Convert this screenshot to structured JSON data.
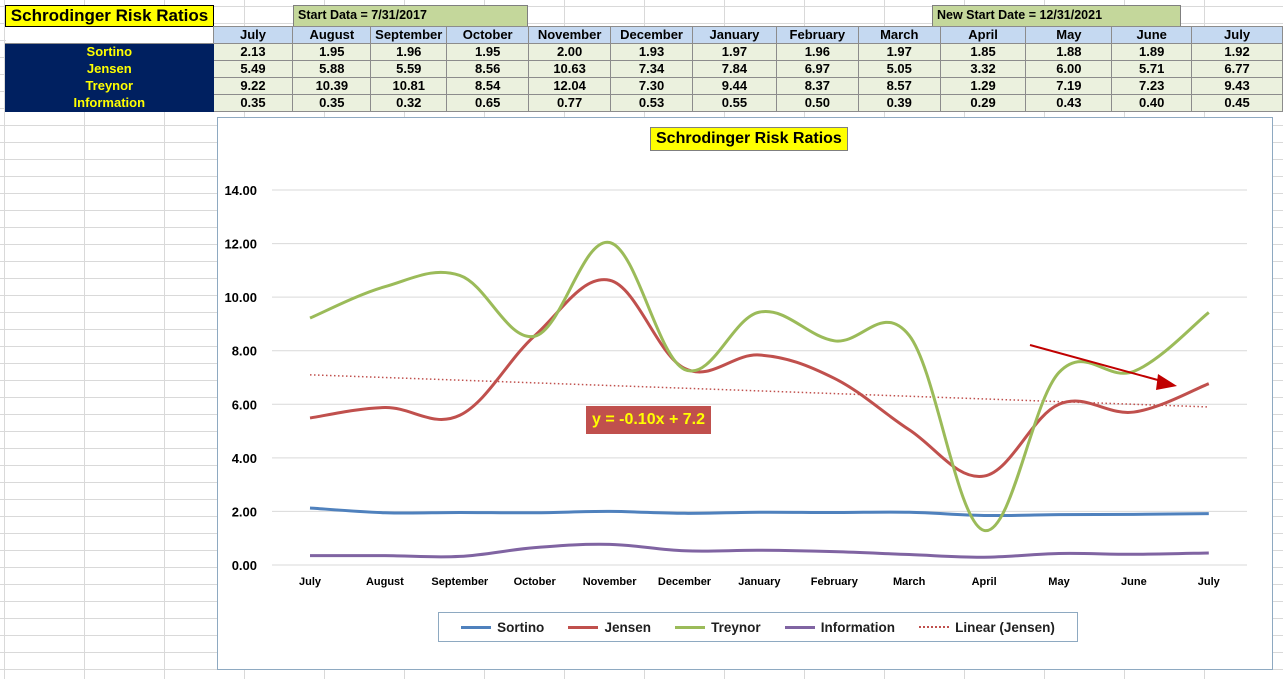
{
  "sheet": {
    "title": "Schrodinger Risk Ratios",
    "start_note": "Start Data = 7/31/2017",
    "new_start_note": "New Start Date = 12/31/2021",
    "columns": [
      "July",
      "August",
      "September",
      "October",
      "November",
      "December",
      "January",
      "February",
      "March",
      "April",
      "May",
      "June",
      "July"
    ],
    "rows": [
      {
        "label": "Sortino",
        "values": [
          "2.13",
          "1.95",
          "1.96",
          "1.95",
          "2.00",
          "1.93",
          "1.97",
          "1.96",
          "1.97",
          "1.85",
          "1.88",
          "1.89",
          "1.92"
        ]
      },
      {
        "label": "Jensen",
        "values": [
          "5.49",
          "5.88",
          "5.59",
          "8.56",
          "10.63",
          "7.34",
          "7.84",
          "6.97",
          "5.05",
          "3.32",
          "6.00",
          "5.71",
          "6.77"
        ]
      },
      {
        "label": "Treynor",
        "values": [
          "9.22",
          "10.39",
          "10.81",
          "8.54",
          "12.04",
          "7.30",
          "9.44",
          "8.37",
          "8.57",
          "1.29",
          "7.19",
          "7.23",
          "9.43"
        ]
      },
      {
        "label": "Information",
        "values": [
          "0.35",
          "0.35",
          "0.32",
          "0.65",
          "0.77",
          "0.53",
          "0.55",
          "0.50",
          "0.39",
          "0.29",
          "0.43",
          "0.40",
          "0.45"
        ]
      }
    ]
  },
  "chart_data": {
    "type": "line",
    "title": "Schrodinger Risk Ratios",
    "categories": [
      "July",
      "August",
      "September",
      "October",
      "November",
      "December",
      "January",
      "February",
      "March",
      "April",
      "May",
      "June",
      "July"
    ],
    "series": [
      {
        "name": "Sortino",
        "color": "#4f81bd",
        "values": [
          2.13,
          1.95,
          1.96,
          1.95,
          2.0,
          1.93,
          1.97,
          1.96,
          1.97,
          1.85,
          1.88,
          1.89,
          1.92
        ]
      },
      {
        "name": "Jensen",
        "color": "#c0504d",
        "values": [
          5.49,
          5.88,
          5.59,
          8.56,
          10.63,
          7.34,
          7.84,
          6.97,
          5.05,
          3.32,
          6.0,
          5.71,
          6.77
        ]
      },
      {
        "name": "Treynor",
        "color": "#9bbb59",
        "values": [
          9.22,
          10.39,
          10.81,
          8.54,
          12.04,
          7.3,
          9.44,
          8.37,
          8.57,
          1.29,
          7.19,
          7.23,
          9.43
        ]
      },
      {
        "name": "Information",
        "color": "#8064a2",
        "values": [
          0.35,
          0.35,
          0.32,
          0.65,
          0.77,
          0.53,
          0.55,
          0.5,
          0.39,
          0.29,
          0.43,
          0.4,
          0.45
        ]
      }
    ],
    "trendline": {
      "name": "Linear (Jensen)",
      "color": "#c0504d",
      "slope": -0.1,
      "intercept": 7.2,
      "equation": "y = -0.10x + 7.2"
    },
    "ylim": [
      0,
      14
    ],
    "yticks": [
      "0.00",
      "2.00",
      "4.00",
      "6.00",
      "8.00",
      "10.00",
      "12.00",
      "14.00"
    ],
    "grid": true,
    "legend": "bottom",
    "annotation": "arrow pointing down-right near May–July"
  }
}
